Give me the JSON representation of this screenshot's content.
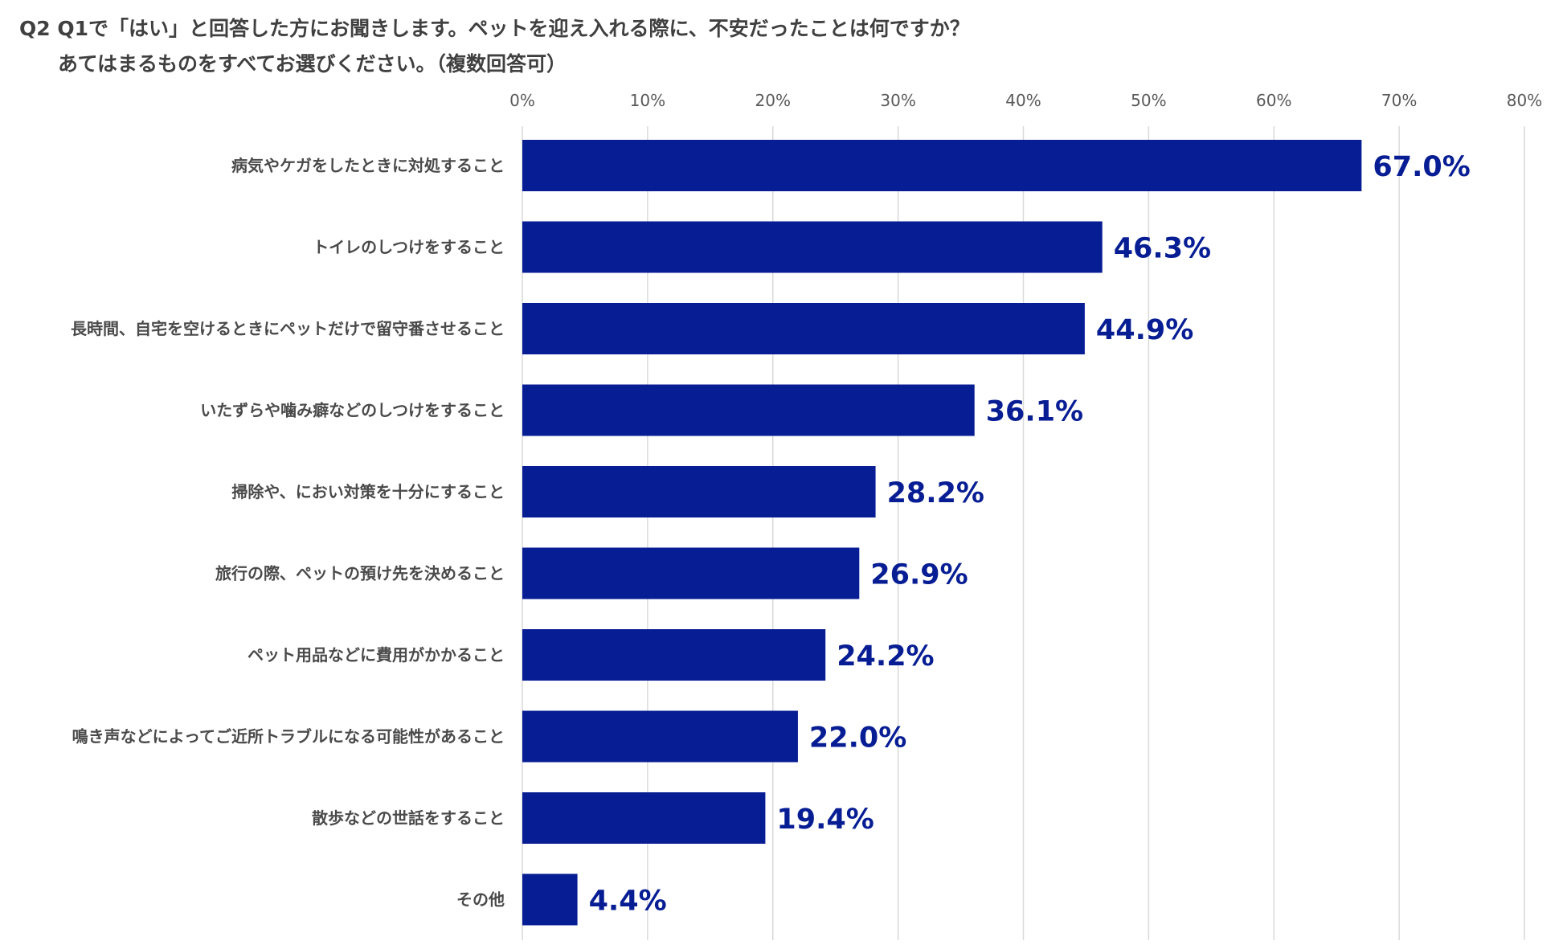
{
  "title": {
    "line1": "Q2 Q1で「はい」と回答した方にお聞きします。ペットを迎え入れる際に、不安だったことは何ですか？",
    "line2": "あてはまるものをすべてお選びください。（複数回答可）"
  },
  "colors": {
    "bar": "#071D94",
    "label": "#071D94"
  },
  "chart_data": {
    "type": "bar",
    "orientation": "horizontal",
    "categories": [
      "病気やケガをしたときに対処すること",
      "トイレのしつけをすること",
      "長時間、自宅を空けるときにペットだけで留守番させること",
      "いたずらや噛み癖などのしつけをすること",
      "掃除や、におい対策を十分にすること",
      "旅行の際、ペットの預け先を決めること",
      "ペット用品などに費用がかかること",
      "鳴き声などによってご近所トラブルになる可能性があること",
      "散歩などの世話をすること",
      "その他"
    ],
    "values": [
      67.0,
      46.3,
      44.9,
      36.1,
      28.2,
      26.9,
      24.2,
      22.0,
      19.4,
      4.4
    ],
    "value_labels": [
      "67.0%",
      "46.3%",
      "44.9%",
      "36.1%",
      "28.2%",
      "26.9%",
      "24.2%",
      "22.0%",
      "19.4%",
      "4.4%"
    ],
    "xlim": [
      0,
      80
    ],
    "x_ticks": [
      0,
      10,
      20,
      30,
      40,
      50,
      60,
      70,
      80
    ],
    "x_tick_labels": [
      "0%",
      "10%",
      "20%",
      "30%",
      "40%",
      "50%",
      "60%",
      "70%",
      "80%"
    ],
    "axis_position": "top",
    "grid": true,
    "legend": "none"
  }
}
